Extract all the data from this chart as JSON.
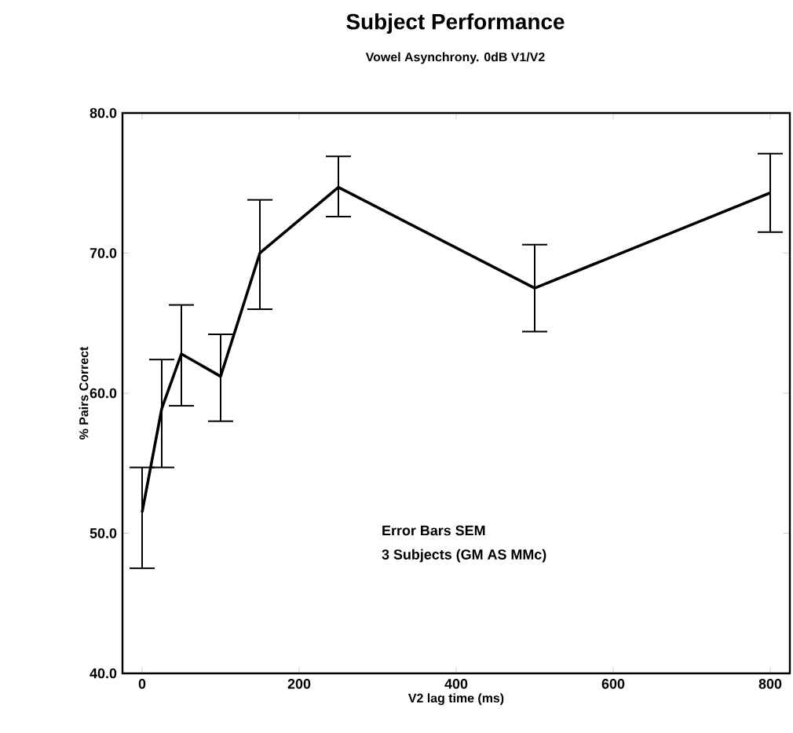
{
  "chart_data": {
    "type": "line",
    "title": "Subject Performance",
    "subtitle": "Vowel Asynchrony. 0dB V1/V2",
    "xlabel": "V2 lag time (ms)",
    "ylabel": "% Pairs Correct",
    "annotations": [
      "Error Bars SEM",
      "3 Subjects (GM AS MMc)"
    ],
    "x": [
      0,
      25,
      50,
      100,
      150,
      250,
      500,
      800
    ],
    "series": [
      {
        "color": "#000000",
        "values": [
          51.5,
          58.9,
          62.8,
          61.2,
          70.0,
          74.7,
          67.5,
          74.3
        ],
        "errors": [
          [
            47.5,
            54.7
          ],
          [
            54.7,
            62.4
          ],
          [
            59.1,
            66.3
          ],
          [
            58.0,
            64.2
          ],
          [
            66.0,
            73.8
          ],
          [
            72.6,
            76.9
          ],
          [
            64.4,
            70.6
          ],
          [
            71.5,
            77.1
          ]
        ]
      }
    ],
    "xlim": [
      -25,
      825
    ],
    "xticks": [
      0,
      200,
      400,
      600,
      800
    ],
    "ylim": [
      40,
      80
    ],
    "yticks": [
      {
        "value": 40,
        "label": "40.0"
      },
      {
        "value": 50,
        "label": "50.0"
      },
      {
        "value": 60,
        "label": "60.0"
      },
      {
        "value": 70,
        "label": "70.0"
      },
      {
        "value": 80,
        "label": "80.0"
      }
    ],
    "grid": false,
    "marker": "none",
    "line_style": "solid"
  }
}
